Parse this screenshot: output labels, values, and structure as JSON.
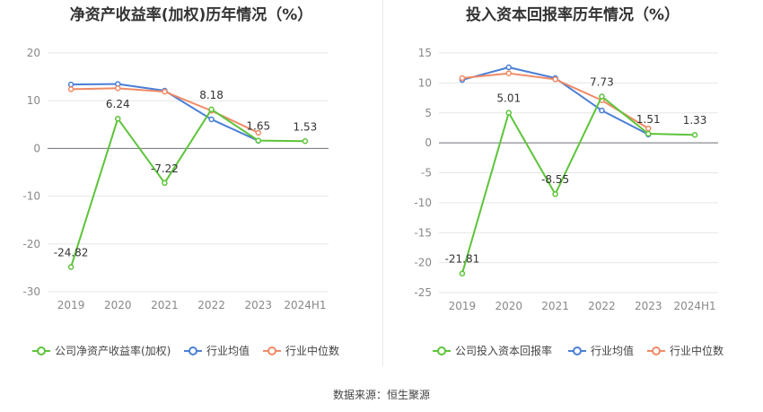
{
  "source_label": "数据来源：恒生聚源",
  "chart_data": [
    {
      "type": "line",
      "title": "净资产收益率(加权)历年情况（%）",
      "xlabel": "",
      "ylabel": "",
      "categories": [
        "2019",
        "2020",
        "2021",
        "2022",
        "2023",
        "2024H1"
      ],
      "ylim": [
        -30,
        20
      ],
      "yticks": [
        20,
        10,
        0,
        -10,
        -20,
        -30
      ],
      "grid": true,
      "legend_position": "bottom",
      "series": [
        {
          "name": "公司净资产收益率(加权)",
          "color": "#5dc43a",
          "values": [
            -24.82,
            6.24,
            -7.22,
            8.18,
            1.65,
            1.53
          ],
          "labels": [
            "-24.82",
            "6.24",
            "-7.22",
            "8.18",
            "1.65",
            "1.53"
          ]
        },
        {
          "name": "行业均值",
          "color": "#4b7fd6",
          "values": [
            13.4,
            13.5,
            12.1,
            6.1,
            1.6,
            null
          ]
        },
        {
          "name": "行业中位数",
          "color": "#f08a66",
          "values": [
            12.4,
            12.6,
            11.9,
            7.9,
            3.3,
            null
          ]
        }
      ]
    },
    {
      "type": "line",
      "title": "投入资本回报率历年情况（%）",
      "xlabel": "",
      "ylabel": "",
      "categories": [
        "2019",
        "2020",
        "2021",
        "2022",
        "2023",
        "2024H1"
      ],
      "ylim": [
        -25,
        15
      ],
      "yticks": [
        15,
        10,
        5,
        0,
        -5,
        -10,
        -15,
        -20,
        -25
      ],
      "grid": true,
      "legend_position": "bottom",
      "series": [
        {
          "name": "公司投入资本回报率",
          "color": "#5dc43a",
          "values": [
            -21.81,
            5.01,
            -8.55,
            7.73,
            1.51,
            1.33
          ],
          "labels": [
            "-21.81",
            "5.01",
            "-8.55",
            "7.73",
            "1.51",
            "1.33"
          ]
        },
        {
          "name": "行业均值",
          "color": "#4b7fd6",
          "values": [
            10.5,
            12.6,
            10.8,
            5.4,
            1.4,
            null
          ]
        },
        {
          "name": "行业中位数",
          "color": "#f08a66",
          "values": [
            10.8,
            11.6,
            10.6,
            7.1,
            2.4,
            null
          ]
        }
      ]
    }
  ]
}
